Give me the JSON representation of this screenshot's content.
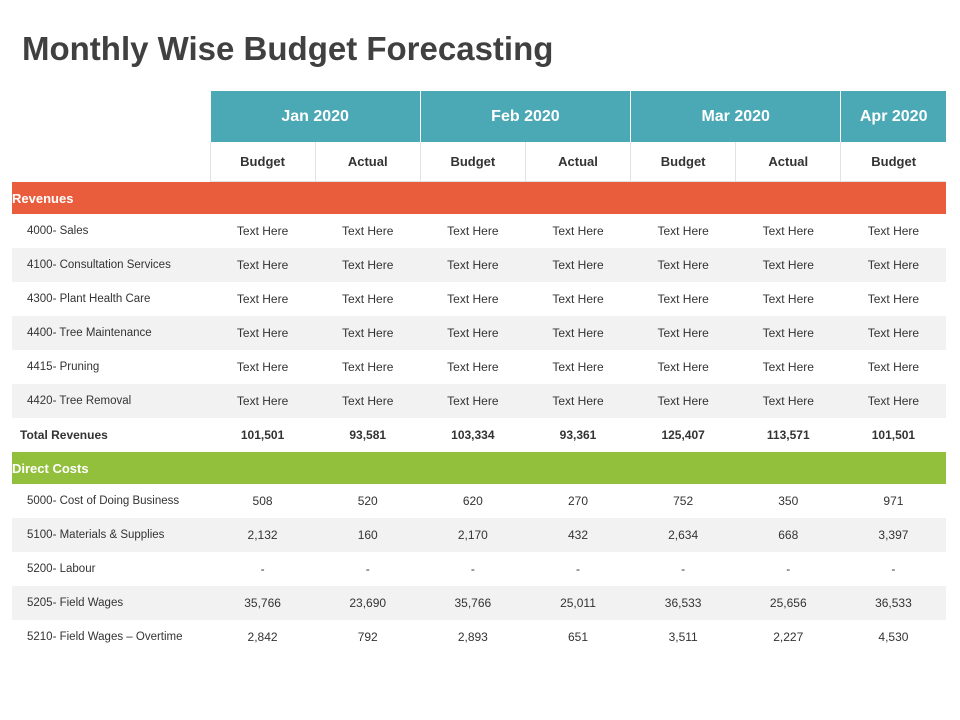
{
  "title": "Monthly Wise Budget Forecasting",
  "colors": {
    "teal": "#4ba9b6",
    "orange": "#e95d3c",
    "green": "#92c03c"
  },
  "icons": [
    "money-bag-hand-icon",
    "cash-coins-icon"
  ],
  "months": [
    "Jan 2020",
    "Feb 2020",
    "Mar 2020",
    "Apr 2020"
  ],
  "subheaders": [
    "Budget",
    "Actual",
    "Budget",
    "Actual",
    "Budget",
    "Actual",
    "Budget"
  ],
  "revenues": {
    "label": "Revenues",
    "rows": [
      {
        "label": "4000- Sales",
        "values": [
          "Text Here",
          "Text Here",
          "Text Here",
          "Text Here",
          "Text Here",
          "Text Here",
          "Text Here"
        ]
      },
      {
        "label": "4100- Consultation Services",
        "values": [
          "Text Here",
          "Text Here",
          "Text Here",
          "Text Here",
          "Text Here",
          "Text Here",
          "Text Here"
        ]
      },
      {
        "label": "4300- Plant Health Care",
        "values": [
          "Text Here",
          "Text Here",
          "Text Here",
          "Text Here",
          "Text Here",
          "Text Here",
          "Text Here"
        ]
      },
      {
        "label": "4400- Tree Maintenance",
        "values": [
          "Text Here",
          "Text Here",
          "Text Here",
          "Text Here",
          "Text Here",
          "Text Here",
          "Text Here"
        ]
      },
      {
        "label": "4415- Pruning",
        "values": [
          "Text Here",
          "Text Here",
          "Text Here",
          "Text Here",
          "Text Here",
          "Text Here",
          "Text Here"
        ]
      },
      {
        "label": "4420- Tree Removal",
        "values": [
          "Text Here",
          "Text Here",
          "Text Here",
          "Text Here",
          "Text Here",
          "Text Here",
          "Text Here"
        ]
      }
    ],
    "total": {
      "label": "Total Revenues",
      "values": [
        "101,501",
        "93,581",
        "103,334",
        "93,361",
        "125,407",
        "113,571",
        "101,501"
      ]
    }
  },
  "direct_costs": {
    "label": "Direct Costs",
    "rows": [
      {
        "label": "5000- Cost of Doing Business",
        "values": [
          "508",
          "520",
          "620",
          "270",
          "752",
          "350",
          "971"
        ]
      },
      {
        "label": "5100- Materials & Supplies",
        "values": [
          "2,132",
          "160",
          "2,170",
          "432",
          "2,634",
          "668",
          "3,397"
        ]
      },
      {
        "label": "5200- Labour",
        "values": [
          "-",
          "-",
          "-",
          "-",
          "-",
          "-",
          "-"
        ]
      },
      {
        "label": "5205- Field Wages",
        "values": [
          "35,766",
          "23,690",
          "35,766",
          "25,011",
          "36,533",
          "25,656",
          "36,533"
        ]
      },
      {
        "label": "5210- Field Wages – Overtime",
        "values": [
          "2,842",
          "792",
          "2,893",
          "651",
          "3,511",
          "2,227",
          "4,530"
        ]
      }
    ]
  }
}
